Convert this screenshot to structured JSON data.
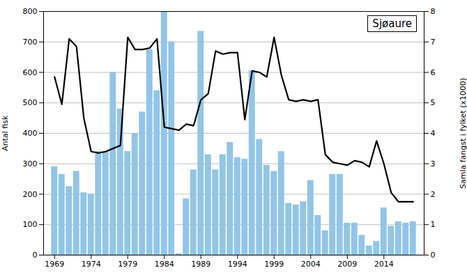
{
  "chart_data": {
    "type": "bar",
    "ylabel": "Antal fisk",
    "y2label": "Samla fangst i fylket (x1000)",
    "annotation": "Sjøaure",
    "x": [
      1969,
      1970,
      1971,
      1972,
      1973,
      1974,
      1975,
      1976,
      1977,
      1978,
      1979,
      1980,
      1981,
      1982,
      1983,
      1984,
      1985,
      1986,
      1987,
      1988,
      1989,
      1990,
      1991,
      1992,
      1993,
      1994,
      1995,
      1996,
      1997,
      1998,
      1999,
      2000,
      2001,
      2002,
      2003,
      2004,
      2005,
      2006,
      2007,
      2008,
      2009,
      2010,
      2011,
      2012,
      2013,
      2014,
      2015,
      2016,
      2017,
      2018
    ],
    "series": [
      {
        "type": "bar",
        "color": "#92C5E8",
        "values": [
          290,
          265,
          225,
          275,
          205,
          200,
          340,
          340,
          600,
          480,
          340,
          400,
          470,
          675,
          540,
          800,
          700,
          5,
          185,
          280,
          735,
          330,
          280,
          330,
          370,
          320,
          315,
          605,
          380,
          295,
          275,
          340,
          170,
          165,
          175,
          245,
          130,
          80,
          265,
          265,
          105,
          105,
          65,
          30,
          45,
          155,
          95,
          110,
          105,
          110
        ]
      },
      {
        "type": "line",
        "color": "#000000",
        "axis": "y2",
        "values": [
          5.85,
          4.95,
          7.1,
          6.85,
          4.5,
          3.4,
          3.35,
          3.4,
          3.5,
          3.6,
          7.15,
          6.75,
          6.75,
          6.8,
          7.1,
          4.2,
          4.15,
          4.1,
          4.3,
          4.25,
          5.1,
          5.3,
          6.7,
          6.6,
          6.65,
          6.65,
          4.45,
          6.05,
          6.0,
          5.85,
          7.15,
          5.9,
          5.1,
          5.05,
          5.1,
          5.05,
          5.1,
          3.3,
          3.05,
          3.0,
          2.95,
          3.1,
          3.05,
          2.9,
          3.75,
          3.0,
          2.05,
          1.75,
          1.75,
          1.75
        ]
      }
    ],
    "xlim": [
      1967.5,
      2019.5
    ],
    "xticks": [
      1969,
      1974,
      1979,
      1984,
      1989,
      1994,
      1999,
      2004,
      2009,
      2014
    ],
    "ylim": [
      0,
      800
    ],
    "yticks": [
      0,
      100,
      200,
      300,
      400,
      500,
      600,
      700,
      800
    ],
    "y2lim": [
      0,
      8
    ],
    "y2ticks": [
      0,
      1,
      2,
      3,
      4,
      5,
      6,
      7,
      8
    ],
    "grid": true
  }
}
